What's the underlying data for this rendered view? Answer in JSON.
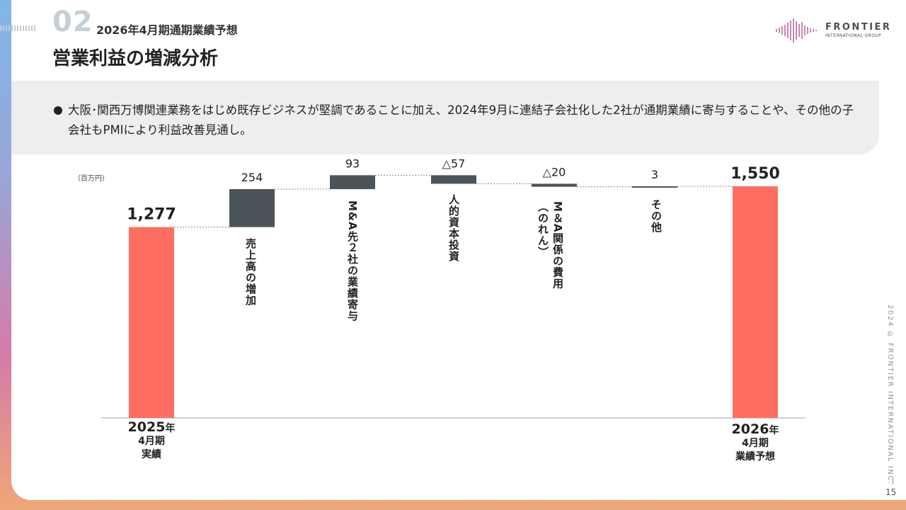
{
  "header": {
    "section_number": "02",
    "section_title": "2026年4月期通期業績予想",
    "page_title": "営業利益の増減分析"
  },
  "logo": {
    "name": "FRONTIER",
    "subtitle": "INTERNATIONAL GROUP"
  },
  "note": {
    "text": "大阪･関西万博関連業務をはじめ既存ビジネスが堅調であることに加え、2024年9月に連結子会社化した2社が通期業績に寄与することや、その他の子会社もPMIにより利益改善見通し。"
  },
  "chart_data": {
    "type": "bar",
    "subtype": "waterfall",
    "unit": "（百万円）",
    "categories": [
      "2025年4月期実績",
      "売上高の増加",
      "M&A先２社の業績寄与",
      "人的資本投資",
      "M＆A関係の費用（のれん）",
      "その他",
      "2026年4月期業績予想"
    ],
    "values": [
      1277,
      254,
      93,
      -57,
      -20,
      3,
      1550
    ],
    "value_labels": [
      "1,277",
      "254",
      "93",
      "△57",
      "△20",
      "3",
      "1,550"
    ],
    "bar_kinds": [
      "total",
      "delta",
      "delta",
      "delta",
      "delta",
      "delta",
      "total"
    ],
    "ylim": [
      0,
      1600
    ],
    "grid": false,
    "colors": {
      "total": "#ff6f61",
      "delta": "#4b5458",
      "connector": "#888888",
      "baseline": "#9aa3a8"
    }
  },
  "labels": {
    "step1": "売上高の増加",
    "step2": "M&A先２社の業績寄与",
    "step3": "人的資本投資",
    "step4_line1": "M＆A関係の費用",
    "step4_line2": "（のれん）",
    "step5": "その他",
    "start_year": "2025",
    "start_suffix": "年",
    "start_line2": "4月期",
    "start_line3": "実績",
    "end_year": "2026",
    "end_suffix": "年",
    "end_line2": "4月期",
    "end_line3": "業績予想"
  },
  "footer": {
    "copyright": "2024 © FRONTIER INTERNATIONAL INC.",
    "page_number": "15"
  }
}
